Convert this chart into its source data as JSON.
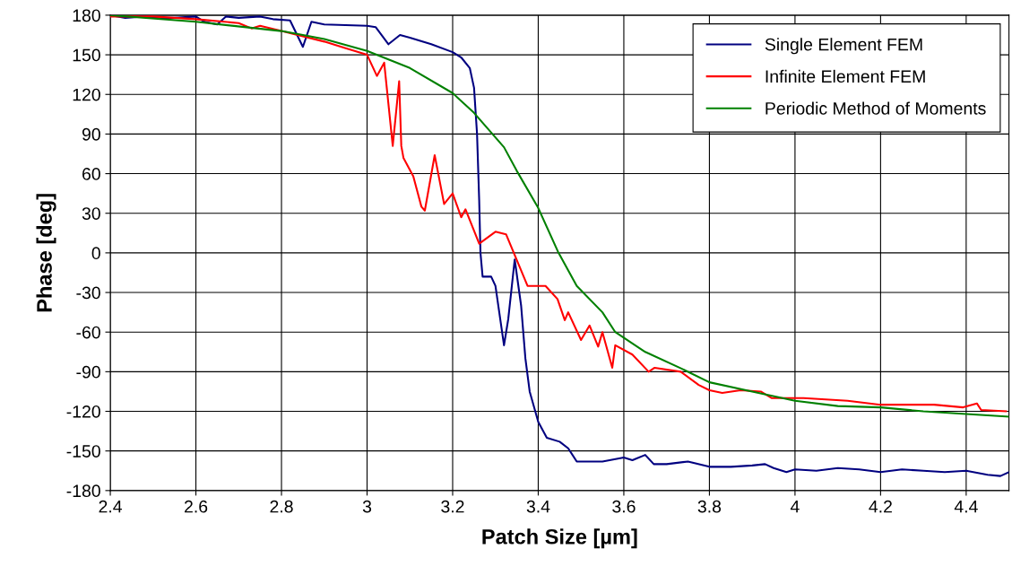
{
  "chart_data": {
    "type": "line",
    "xlabel": "Patch Size [µm]",
    "ylabel": "Phase [deg]",
    "xlim": [
      2.4,
      4.5
    ],
    "xticks": [
      2.4,
      2.6,
      2.8,
      3,
      3.2,
      3.4,
      3.6,
      3.8,
      4,
      4.2,
      4.4
    ],
    "ylim": [
      -180,
      180
    ],
    "yticks": [
      -180,
      -150,
      -120,
      -90,
      -60,
      -30,
      0,
      30,
      60,
      90,
      120,
      150,
      180
    ],
    "grid": true,
    "legend": "top right",
    "marker": "none",
    "line_style": "solid",
    "series": [
      {
        "name": "Single Element FEM",
        "color": "#000080",
        "x": [
          2.4,
          2.435,
          2.477,
          2.52,
          2.55,
          2.6,
          2.62,
          2.65,
          2.67,
          2.7,
          2.75,
          2.78,
          2.82,
          2.85,
          2.87,
          2.9,
          3.0,
          3.02,
          3.05,
          3.077,
          3.1,
          3.15,
          3.2,
          3.22,
          3.24,
          3.25,
          3.257,
          3.262,
          3.265,
          3.27,
          3.29,
          3.3,
          3.32,
          3.33,
          3.345,
          3.36,
          3.37,
          3.38,
          3.4,
          3.42,
          3.45,
          3.47,
          3.49,
          3.55,
          3.6,
          3.62,
          3.65,
          3.67,
          3.7,
          3.75,
          3.8,
          3.85,
          3.9,
          3.93,
          3.95,
          3.98,
          4.0,
          4.05,
          4.1,
          4.15,
          4.2,
          4.25,
          4.3,
          4.35,
          4.4,
          4.45,
          4.48,
          4.5
        ],
        "values": [
          180,
          178,
          179,
          178,
          178,
          179,
          175,
          173,
          179,
          178,
          179,
          177,
          176,
          156,
          175,
          173,
          172,
          171,
          158,
          165,
          163,
          158,
          152,
          148,
          140,
          125,
          90,
          40,
          0,
          -18,
          -18,
          -25,
          -70,
          -50,
          -5,
          -40,
          -80,
          -105,
          -128,
          -140,
          -143,
          -148,
          -158,
          -158,
          -155,
          -157,
          -153,
          -160,
          -160,
          -158,
          -162,
          -162,
          -161,
          -160,
          -163,
          -166,
          -164,
          -165,
          -163,
          -164,
          -166,
          -164,
          -165,
          -166,
          -165,
          -168,
          -169,
          -166
        ]
      },
      {
        "name": "Infinite Element FEM",
        "color": "#ff0000",
        "x": [
          2.4,
          2.5,
          2.6,
          2.7,
          2.73,
          2.75,
          2.8,
          2.85,
          2.9,
          2.95,
          3.0,
          3.023,
          3.04,
          3.06,
          3.075,
          3.08,
          3.085,
          3.108,
          3.127,
          3.135,
          3.158,
          3.18,
          3.2,
          3.22,
          3.23,
          3.262,
          3.3,
          3.325,
          3.375,
          3.417,
          3.445,
          3.462,
          3.47,
          3.5,
          3.52,
          3.54,
          3.55,
          3.573,
          3.58,
          3.62,
          3.658,
          3.672,
          3.733,
          3.775,
          3.8,
          3.83,
          3.873,
          3.92,
          3.946,
          4.02,
          4.123,
          4.2,
          4.325,
          4.393,
          4.425,
          4.435,
          4.493
        ],
        "values": [
          179,
          179,
          177,
          174,
          170,
          172,
          168,
          164,
          160,
          155,
          150,
          134,
          144,
          81,
          130,
          81,
          72,
          58,
          35,
          32,
          74,
          37,
          45,
          27,
          33,
          7,
          16,
          14,
          -25,
          -25,
          -35,
          -51,
          -45,
          -66,
          -55,
          -71,
          -60,
          -87,
          -70,
          -77,
          -90,
          -87,
          -90,
          -100,
          -104,
          -106,
          -104,
          -105,
          -110,
          -110,
          -112,
          -115,
          -115,
          -117,
          -114,
          -119,
          -120
        ]
      },
      {
        "name": "Periodic Method of Moments",
        "color": "#008000",
        "x": [
          2.4,
          2.6,
          2.8,
          2.9,
          3.0,
          3.1,
          3.2,
          3.25,
          3.32,
          3.35,
          3.4,
          3.446,
          3.49,
          3.55,
          3.58,
          3.65,
          3.737,
          3.8,
          3.9,
          4.0,
          4.1,
          4.2,
          4.3,
          4.4,
          4.5
        ],
        "values": [
          180,
          175,
          168,
          162,
          153,
          140,
          121,
          106,
          80,
          62,
          34,
          1,
          -25,
          -45,
          -60,
          -75,
          -88,
          -98,
          -105,
          -112,
          -116,
          -117,
          -120,
          -122,
          -124
        ]
      }
    ]
  }
}
